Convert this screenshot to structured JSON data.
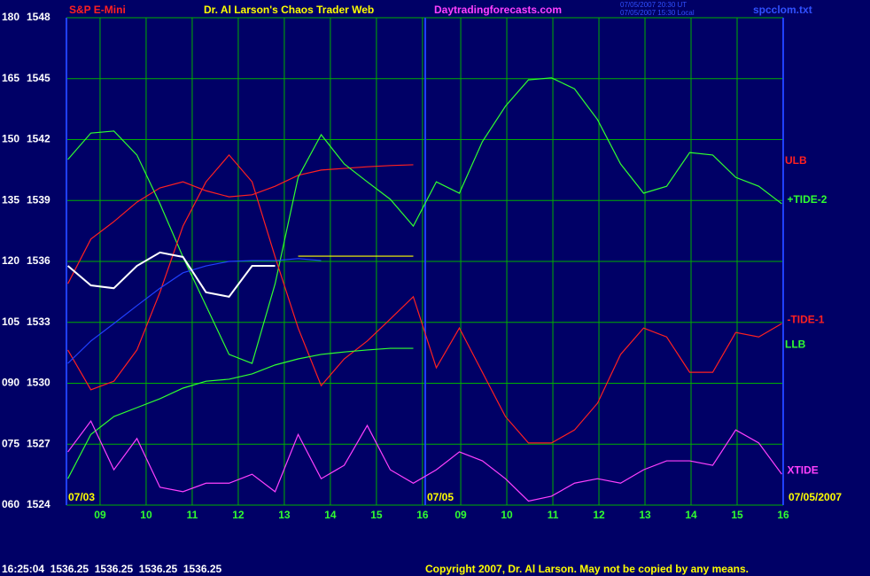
{
  "chart_data": {
    "type": "line",
    "instrument": "S&P E-Mini",
    "title": "Dr. Al Larson's Chaos Trader Web",
    "website": "Daytradingforecasts.com",
    "timestamps": [
      "07/05/2007 20:30 UT",
      "07/05/2007 15:30 Local"
    ],
    "filename": "spcclom.txt",
    "date_labels": [
      "07/03",
      "07/05",
      "07/05/2007"
    ],
    "quote": "16:25:04  1536.25  1536.25  1536.25  1536.25",
    "copyright": "Copyright 2007, Dr. Al Larson. May not be copied by any means.",
    "x": [
      8.3,
      8.8,
      9.3,
      9.8,
      10.3,
      10.8,
      11.3,
      11.8,
      12.3,
      12.8,
      13.3,
      13.8,
      14.3,
      14.8,
      15.3,
      15.8,
      16.3,
      16.8,
      17.3,
      17.8,
      18.3,
      18.8,
      19.3,
      19.8,
      20.3,
      20.8,
      21.3,
      21.8,
      22.3,
      22.8,
      23.3,
      23.8
    ],
    "xlim": [
      8.27,
      23.83
    ],
    "xticks": [
      {
        "value": 9,
        "label": "09"
      },
      10,
      11,
      12,
      13,
      14,
      15,
      16,
      {
        "value": 16.83,
        "label": "09"
      },
      {
        "value": 17.83,
        "label": "10"
      },
      {
        "value": 18.83,
        "label": "11"
      },
      {
        "value": 19.83,
        "label": "12"
      },
      {
        "value": 20.83,
        "label": "13"
      },
      {
        "value": 21.83,
        "label": "14"
      },
      {
        "value": 22.83,
        "label": "15"
      },
      {
        "value": 23.83,
        "label": "16"
      }
    ],
    "ylim": [
      60,
      180
    ],
    "yticks": [
      {
        "value": 60,
        "label": "060"
      },
      {
        "value": 75,
        "label": "075"
      },
      {
        "value": 90,
        "label": "090"
      },
      105,
      120,
      135,
      150,
      165,
      180
    ],
    "y2lim": [
      1524,
      1548
    ],
    "y2ticks": [
      1524,
      1527,
      1530,
      1533,
      1536,
      1539,
      1542,
      1545,
      1548
    ],
    "grid": true,
    "series": [
      {
        "name": "ULB",
        "color": "#ff2020",
        "values": [
          114.5,
          125.5,
          129.8,
          134.6,
          138.1,
          139.6,
          137.4,
          135.9,
          136.4,
          138.5,
          141.2,
          142.5,
          142.9,
          143.3,
          143.6,
          143.8,
          null,
          null,
          null,
          null,
          null,
          null,
          null,
          null,
          null,
          null,
          null,
          null,
          null,
          null,
          null,
          null
        ]
      },
      {
        "name": "+TIDE-2",
        "color": "#30ff30",
        "values": [
          145.1,
          151.6,
          152.1,
          146.2,
          134.2,
          121.1,
          109.1,
          97.1,
          94.9,
          114.5,
          140.7,
          151.2,
          144.0,
          139.6,
          135.3,
          128.7,
          139.6,
          136.8,
          149.5,
          158.2,
          164.7,
          165.2,
          162.5,
          154.9,
          144.0,
          136.8,
          138.5,
          146.8,
          146.2,
          140.7,
          138.5,
          134.2
        ]
      },
      {
        "name": "-TIDE-1",
        "color": "#ff2020",
        "values": [
          98.2,
          88.4,
          90.5,
          98.2,
          112.4,
          128.7,
          139.6,
          146.2,
          139.6,
          121.1,
          103.6,
          89.4,
          96.0,
          100.4,
          105.8,
          111.3,
          93.8,
          103.6,
          92.7,
          81.8,
          75.3,
          75.3,
          78.5,
          85.1,
          97.1,
          103.6,
          101.4,
          92.7,
          92.7,
          102.5,
          101.4,
          104.7
        ]
      },
      {
        "name": "LLB",
        "color": "#30ff30",
        "values": [
          66.5,
          77.4,
          81.8,
          84.0,
          86.2,
          88.8,
          90.5,
          91.0,
          92.3,
          94.5,
          96.0,
          97.1,
          97.7,
          98.2,
          98.6,
          98.6,
          null,
          null,
          null,
          null,
          null,
          null,
          null,
          null,
          null,
          null,
          null,
          null,
          null,
          null,
          null,
          null
        ]
      },
      {
        "name": "XTIDE",
        "color": "#ff40ff",
        "values": [
          73.1,
          80.7,
          68.7,
          76.4,
          64.4,
          63.3,
          65.4,
          65.4,
          67.6,
          63.3,
          77.4,
          66.5,
          69.8,
          79.6,
          68.7,
          65.4,
          68.7,
          73.1,
          70.9,
          66.5,
          61.0,
          62.2,
          65.4,
          66.5,
          65.4,
          68.7,
          70.9,
          70.9,
          69.8,
          78.5,
          75.3,
          67.6
        ]
      },
      {
        "color": "#2040ff",
        "values": [
          94.9,
          100.4,
          104.7,
          109.1,
          113.4,
          117.2,
          118.9,
          120.0,
          120.2,
          120.2,
          120.7,
          120.2,
          null,
          null,
          null,
          null,
          null,
          null,
          null,
          null,
          null,
          null,
          null,
          null,
          null,
          null,
          null,
          null,
          null,
          null,
          null,
          null
        ]
      },
      {
        "color": "#ffffff",
        "values": [
          118.9,
          114.1,
          113.4,
          118.9,
          122.2,
          121.1,
          112.4,
          111.3,
          118.9,
          118.9,
          null,
          null,
          null,
          null,
          null,
          null,
          null,
          null,
          null,
          null,
          null,
          null,
          null,
          null,
          null,
          null,
          null,
          null,
          null,
          null,
          null,
          null
        ]
      },
      {
        "color": "#ffff00",
        "values": [
          null,
          null,
          null,
          null,
          null,
          null,
          null,
          null,
          null,
          null,
          121.3,
          121.3,
          121.3,
          121.3,
          121.3,
          121.3,
          null,
          null,
          null,
          null,
          null,
          null,
          null,
          null,
          null,
          null,
          null,
          null,
          null,
          null,
          null,
          null
        ]
      }
    ]
  }
}
